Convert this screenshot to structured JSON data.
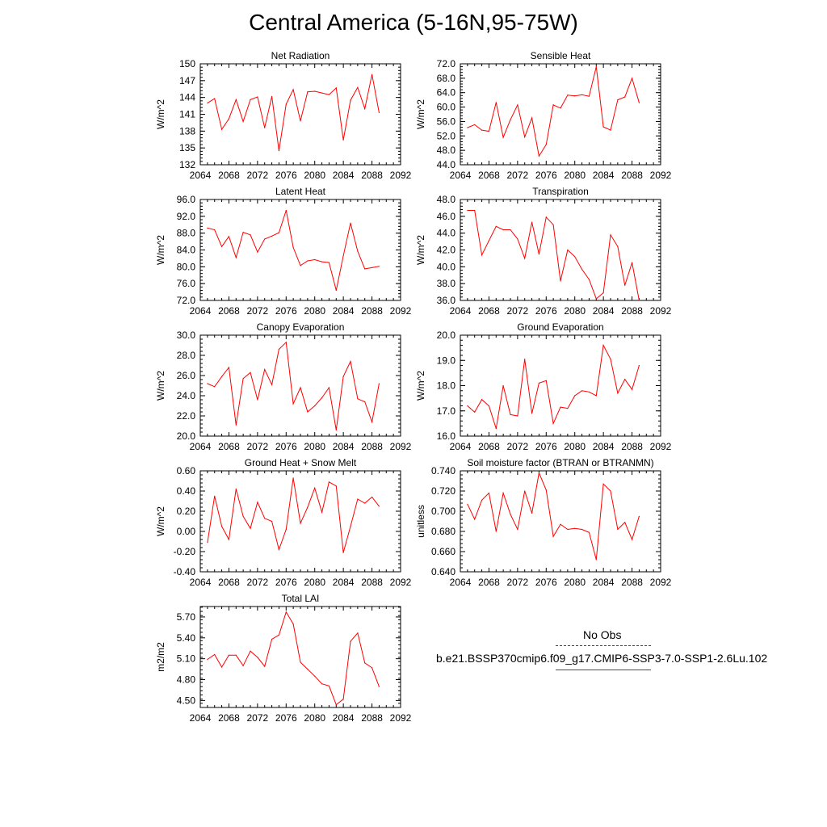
{
  "figure": {
    "title": "Central America (5-16N,95-75W)"
  },
  "colors": {
    "model": "#ff0000",
    "obs": "#3333aa",
    "axis": "#000000"
  },
  "legend": {
    "obs_label": "No Obs",
    "model_label": "b.e21.BSSP370cmip6.f09_g17.CMIP6-SSP3-7.0-SSP1-2.6Lu.102"
  },
  "chart_data": [
    {
      "type": "line",
      "title": "Net Radiation",
      "ylabel": "W/m^2",
      "xlim": [
        2064,
        2092
      ],
      "ylim": [
        132,
        150
      ],
      "xticks": [
        "2064",
        "2068",
        "2072",
        "2076",
        "2080",
        "2084",
        "2088",
        "2092"
      ],
      "yticks": [
        "132",
        "135",
        "138",
        "141",
        "144",
        "147",
        "150"
      ],
      "x": [
        2065,
        2066,
        2067,
        2068,
        2069,
        2070,
        2071,
        2072,
        2073,
        2074,
        2075,
        2076,
        2077,
        2078,
        2079,
        2080,
        2081,
        2082,
        2083,
        2084,
        2085,
        2086,
        2087,
        2088,
        2089
      ],
      "series": [
        {
          "values": [
            143.0,
            143.8,
            138.3,
            140.2,
            143.6,
            139.7,
            143.6,
            144.1,
            138.6,
            144.2,
            134.5,
            142.8,
            145.4,
            139.8,
            145.0,
            145.1,
            144.8,
            144.5,
            145.7,
            136.4,
            143.5,
            145.8,
            142.0,
            148.1,
            141.3
          ]
        }
      ]
    },
    {
      "type": "line",
      "title": "Sensible Heat",
      "ylabel": "W/m^2",
      "xlim": [
        2064,
        2092
      ],
      "ylim": [
        44,
        72
      ],
      "xticks": [
        "2064",
        "2068",
        "2072",
        "2076",
        "2080",
        "2084",
        "2088",
        "2092"
      ],
      "yticks": [
        "44.0",
        "48.0",
        "52.0",
        "56.0",
        "60.0",
        "64.0",
        "68.0",
        "72.0"
      ],
      "x": [
        2065,
        2066,
        2067,
        2068,
        2069,
        2070,
        2071,
        2072,
        2073,
        2074,
        2075,
        2076,
        2077,
        2078,
        2079,
        2080,
        2081,
        2082,
        2083,
        2084,
        2085,
        2086,
        2087,
        2088,
        2089
      ],
      "series": [
        {
          "values": [
            54.3,
            55.1,
            53.6,
            53.3,
            61.3,
            51.6,
            56.5,
            60.6,
            51.7,
            57.0,
            46.4,
            49.6,
            60.6,
            59.7,
            63.3,
            63.1,
            63.4,
            63.0,
            71.2,
            54.5,
            53.6,
            62.0,
            62.8,
            68.0,
            61.2
          ]
        }
      ]
    },
    {
      "type": "line",
      "title": "Latent Heat",
      "ylabel": "W/m^2",
      "xlim": [
        2064,
        2092
      ],
      "ylim": [
        72,
        96
      ],
      "xticks": [
        "2064",
        "2068",
        "2072",
        "2076",
        "2080",
        "2084",
        "2088",
        "2092"
      ],
      "yticks": [
        "72.0",
        "76.0",
        "80.0",
        "84.0",
        "88.0",
        "92.0",
        "96.0"
      ],
      "x": [
        2065,
        2066,
        2067,
        2068,
        2069,
        2070,
        2071,
        2072,
        2073,
        2074,
        2075,
        2076,
        2077,
        2078,
        2079,
        2080,
        2081,
        2082,
        2083,
        2084,
        2085,
        2086,
        2087,
        2088,
        2089
      ],
      "series": [
        {
          "values": [
            89.2,
            88.8,
            84.8,
            87.2,
            82.2,
            88.2,
            87.6,
            83.5,
            86.6,
            87.3,
            88.1,
            93.4,
            84.6,
            80.3,
            81.4,
            81.7,
            81.2,
            81.0,
            74.4,
            82.6,
            90.4,
            83.7,
            79.5,
            79.8,
            80.1
          ]
        }
      ]
    },
    {
      "type": "line",
      "title": "Transpiration",
      "ylabel": "W/m^2",
      "xlim": [
        2064,
        2092
      ],
      "ylim": [
        36,
        48
      ],
      "xticks": [
        "2064",
        "2068",
        "2072",
        "2076",
        "2080",
        "2084",
        "2088",
        "2092"
      ],
      "yticks": [
        "36.0",
        "38.0",
        "40.0",
        "42.0",
        "44.0",
        "46.0",
        "48.0"
      ],
      "x": [
        2065,
        2066,
        2067,
        2068,
        2069,
        2070,
        2071,
        2072,
        2073,
        2074,
        2075,
        2076,
        2077,
        2078,
        2079,
        2080,
        2081,
        2082,
        2083,
        2084,
        2085,
        2086,
        2087,
        2088,
        2089
      ],
      "series": [
        {
          "values": [
            46.7,
            46.7,
            41.4,
            43.1,
            44.8,
            44.4,
            44.4,
            43.3,
            41.0,
            45.3,
            41.5,
            45.9,
            45.0,
            38.3,
            42.0,
            41.2,
            39.7,
            38.5,
            36.2,
            36.9,
            43.8,
            42.4,
            37.8,
            40.5,
            36.0
          ]
        }
      ]
    },
    {
      "type": "line",
      "title": "Canopy Evaporation",
      "ylabel": "W/m^2",
      "xlim": [
        2064,
        2092
      ],
      "ylim": [
        20,
        30
      ],
      "xticks": [
        "2064",
        "2068",
        "2072",
        "2076",
        "2080",
        "2084",
        "2088",
        "2092"
      ],
      "yticks": [
        "20.0",
        "22.0",
        "24.0",
        "26.0",
        "28.0",
        "30.0"
      ],
      "x": [
        2065,
        2066,
        2067,
        2068,
        2069,
        2070,
        2071,
        2072,
        2073,
        2074,
        2075,
        2076,
        2077,
        2078,
        2079,
        2080,
        2081,
        2082,
        2083,
        2084,
        2085,
        2086,
        2087,
        2088,
        2089
      ],
      "series": [
        {
          "values": [
            25.2,
            24.9,
            25.9,
            26.8,
            21.1,
            25.7,
            26.3,
            23.6,
            26.6,
            25.1,
            28.6,
            29.3,
            23.2,
            24.8,
            22.4,
            23.0,
            23.8,
            24.8,
            20.6,
            25.9,
            27.4,
            23.7,
            23.4,
            21.4,
            25.2
          ]
        }
      ]
    },
    {
      "type": "line",
      "title": "Ground Evaporation",
      "ylabel": "W/m^2",
      "xlim": [
        2064,
        2092
      ],
      "ylim": [
        16,
        20
      ],
      "xticks": [
        "2064",
        "2068",
        "2072",
        "2076",
        "2080",
        "2084",
        "2088",
        "2092"
      ],
      "yticks": [
        "16.0",
        "17.0",
        "18.0",
        "19.0",
        "20.0"
      ],
      "x": [
        2065,
        2066,
        2067,
        2068,
        2069,
        2070,
        2071,
        2072,
        2073,
        2074,
        2075,
        2076,
        2077,
        2078,
        2079,
        2080,
        2081,
        2082,
        2083,
        2084,
        2085,
        2086,
        2087,
        2088,
        2089
      ],
      "series": [
        {
          "values": [
            17.2,
            16.95,
            17.45,
            17.2,
            16.3,
            18.0,
            16.85,
            16.8,
            19.05,
            16.9,
            18.1,
            18.2,
            16.5,
            17.15,
            17.1,
            17.6,
            17.8,
            17.75,
            17.6,
            19.6,
            19.05,
            17.7,
            18.25,
            17.85,
            18.8
          ]
        }
      ]
    },
    {
      "type": "line",
      "title": "Ground Heat + Snow Melt",
      "ylabel": "W/m^2",
      "xlim": [
        2064,
        2092
      ],
      "ylim": [
        -0.4,
        0.6
      ],
      "xticks": [
        "2064",
        "2068",
        "2072",
        "2076",
        "2080",
        "2084",
        "2088",
        "2092"
      ],
      "yticks": [
        "-0.40",
        "-0.20",
        "0.00",
        "0.20",
        "0.40",
        "0.60"
      ],
      "x": [
        2065,
        2066,
        2067,
        2068,
        2069,
        2070,
        2071,
        2072,
        2073,
        2074,
        2075,
        2076,
        2077,
        2078,
        2079,
        2080,
        2081,
        2082,
        2083,
        2084,
        2085,
        2086,
        2087,
        2088,
        2089
      ],
      "series": [
        {
          "values": [
            -0.11,
            0.35,
            0.05,
            -0.08,
            0.42,
            0.15,
            0.03,
            0.29,
            0.13,
            0.1,
            -0.18,
            0.02,
            0.53,
            0.08,
            0.24,
            0.43,
            0.19,
            0.49,
            0.45,
            -0.21,
            0.05,
            0.32,
            0.28,
            0.34,
            0.25
          ]
        }
      ]
    },
    {
      "type": "line",
      "title": "Soil moisture factor (BTRAN or BTRANMN)",
      "ylabel": "unitless",
      "xlim": [
        2064,
        2092
      ],
      "ylim": [
        0.64,
        0.74
      ],
      "xticks": [
        "2064",
        "2068",
        "2072",
        "2076",
        "2080",
        "2084",
        "2088",
        "2092"
      ],
      "yticks": [
        "0.640",
        "0.660",
        "0.680",
        "0.700",
        "0.720",
        "0.740"
      ],
      "x": [
        2065,
        2066,
        2067,
        2068,
        2069,
        2070,
        2071,
        2072,
        2073,
        2074,
        2075,
        2076,
        2077,
        2078,
        2079,
        2080,
        2081,
        2082,
        2083,
        2084,
        2085,
        2086,
        2087,
        2088,
        2089
      ],
      "series": [
        {
          "values": [
            0.707,
            0.692,
            0.711,
            0.718,
            0.68,
            0.718,
            0.697,
            0.682,
            0.72,
            0.698,
            0.738,
            0.721,
            0.675,
            0.687,
            0.682,
            0.683,
            0.682,
            0.679,
            0.652,
            0.727,
            0.72,
            0.682,
            0.689,
            0.672,
            0.695
          ]
        }
      ]
    },
    {
      "type": "line",
      "title": "Total LAI",
      "ylabel": "m2/m2",
      "xlim": [
        2064,
        2092
      ],
      "ylim": [
        4.4,
        5.85
      ],
      "xticks": [
        "2064",
        "2068",
        "2072",
        "2076",
        "2080",
        "2084",
        "2088",
        "2092"
      ],
      "yticks": [
        "4.50",
        "4.80",
        "5.10",
        "5.40",
        "5.70"
      ],
      "x": [
        2065,
        2066,
        2067,
        2068,
        2069,
        2070,
        2071,
        2072,
        2073,
        2074,
        2075,
        2076,
        2077,
        2078,
        2079,
        2080,
        2081,
        2082,
        2083,
        2084,
        2085,
        2086,
        2087,
        2088,
        2089
      ],
      "series": [
        {
          "values": [
            5.09,
            5.16,
            4.98,
            5.15,
            5.15,
            5.0,
            5.21,
            5.12,
            4.99,
            5.38,
            5.44,
            5.77,
            5.6,
            5.05,
            4.95,
            4.85,
            4.74,
            4.71,
            4.44,
            4.52,
            5.35,
            5.47,
            5.04,
            4.97,
            4.7
          ]
        }
      ]
    }
  ]
}
